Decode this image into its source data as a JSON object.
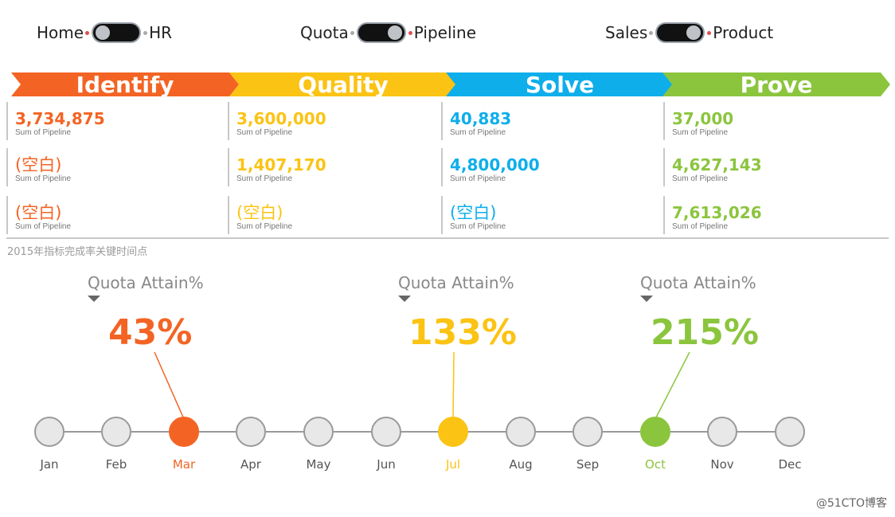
{
  "toggles": [
    {
      "left": "Home",
      "right": "HR",
      "state": "left"
    },
    {
      "left": "Quota",
      "right": "Pipeline",
      "state": "right"
    },
    {
      "left": "Sales",
      "right": "Product",
      "state": "right"
    }
  ],
  "stages": [
    {
      "label": "Identify",
      "color": "#f36424"
    },
    {
      "label": "Quality",
      "color": "#fbc314"
    },
    {
      "label": "Solve",
      "color": "#0eaeeb"
    },
    {
      "label": "Prove",
      "color": "#8bc53e"
    }
  ],
  "kpis": {
    "sub_label": "Sum of Pipeline",
    "columns": [
      [
        "3,734,875",
        "(空白)",
        "(空白)"
      ],
      [
        "3,600,000",
        "1,407,170",
        "(空白)"
      ],
      [
        "40,883",
        "4,800,000",
        "(空白)"
      ],
      [
        "37,000",
        "4,627,143",
        "7,613,026"
      ]
    ]
  },
  "caption": "2015年指标完成率关键时间点",
  "quota_title": "Quota Attain%",
  "highlights": [
    {
      "month": "Mar",
      "value": "43%",
      "color": "#f36424"
    },
    {
      "month": "Jul",
      "value": "133%",
      "color": "#fbc314"
    },
    {
      "month": "Oct",
      "value": "215%",
      "color": "#8bc53e"
    }
  ],
  "months": [
    "Jan",
    "Feb",
    "Mar",
    "Apr",
    "May",
    "Jun",
    "Jul",
    "Aug",
    "Sep",
    "Oct",
    "Nov",
    "Dec"
  ],
  "watermark": "@51CTO博客"
}
